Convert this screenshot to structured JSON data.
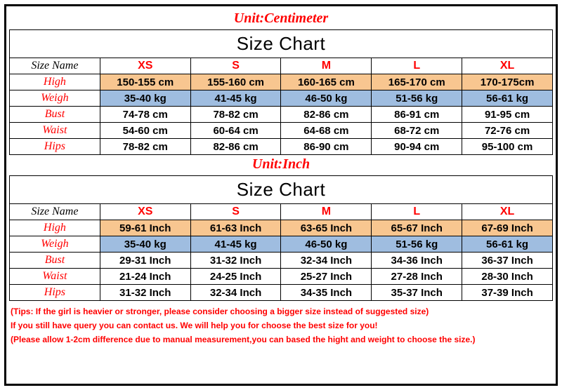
{
  "colors": {
    "border": "#000000",
    "accent_red": "#ff0000",
    "row_highlight_orange": "#f8c690",
    "row_highlight_blue": "#9fbde0",
    "background": "#ffffff"
  },
  "typography": {
    "unit_title_fontsize": 20,
    "chart_header_fontsize": 26,
    "cell_fontsize": 15,
    "label_fontsize": 16,
    "tips_fontsize": 12
  },
  "tables": [
    {
      "unit_title": "Unit:Centimeter",
      "chart_header": "Size Chart",
      "size_name_label": "Size Name",
      "sizes": [
        "XS",
        "S",
        "M",
        "L",
        "XL"
      ],
      "rows": [
        {
          "label": "High",
          "bg": "bg-orange",
          "values": [
            "150-155 cm",
            "155-160 cm",
            "160-165 cm",
            "165-170  cm",
            "170-175cm"
          ]
        },
        {
          "label": "Weigh",
          "bg": "bg-blue",
          "values": [
            "35-40 kg",
            "41-45 kg",
            "46-50 kg",
            "51-56 kg",
            "56-61 kg"
          ]
        },
        {
          "label": "Bust",
          "bg": "",
          "values": [
            "74-78 cm",
            "78-82 cm",
            "82-86 cm",
            "86-91 cm",
            "91-95 cm"
          ]
        },
        {
          "label": "Waist",
          "bg": "",
          "values": [
            "54-60 cm",
            "60-64 cm",
            "64-68 cm",
            "68-72 cm",
            "72-76 cm"
          ]
        },
        {
          "label": "Hips",
          "bg": "",
          "values": [
            "78-82 cm",
            "82-86 cm",
            "86-90 cm",
            "90-94 cm",
            "95-100 cm"
          ]
        }
      ]
    },
    {
      "unit_title": "Unit:Inch",
      "chart_header": "Size Chart",
      "size_name_label": "Size Name",
      "sizes": [
        "XS",
        "S",
        "M",
        "L",
        "XL"
      ],
      "rows": [
        {
          "label": "High",
          "bg": "bg-orange",
          "values": [
            "59-61 Inch",
            "61-63 Inch",
            "63-65  Inch",
            "65-67  Inch",
            "67-69 Inch"
          ]
        },
        {
          "label": "Weigh",
          "bg": "bg-blue",
          "values": [
            "35-40 kg",
            "41-45 kg",
            "46-50 kg",
            "51-56 kg",
            "56-61 kg"
          ]
        },
        {
          "label": "Bust",
          "bg": "",
          "values": [
            "29-31 Inch",
            "31-32 Inch",
            "32-34  Inch",
            "34-36  Inch",
            "36-37 Inch"
          ]
        },
        {
          "label": "Waist",
          "bg": "",
          "values": [
            "21-24 Inch",
            "24-25 Inch",
            "25-27  Inch",
            "27-28  Inch",
            "28-30 Inch"
          ]
        },
        {
          "label": "Hips",
          "bg": "",
          "values": [
            "31-32 Inch",
            "32-34 Inch",
            "34-35  Inch",
            "35-37  Inch",
            "37-39 Inch"
          ]
        }
      ]
    }
  ],
  "tips": [
    "(Tips: If the girl is heavier or stronger, please consider choosing a bigger size instead of suggested size)",
    "If you still have query you can contact us. We will help you for choose the best size for you!",
    "(Please allow 1-2cm difference due to manual measurement,you can based the hight and weight to choose the size.)"
  ]
}
